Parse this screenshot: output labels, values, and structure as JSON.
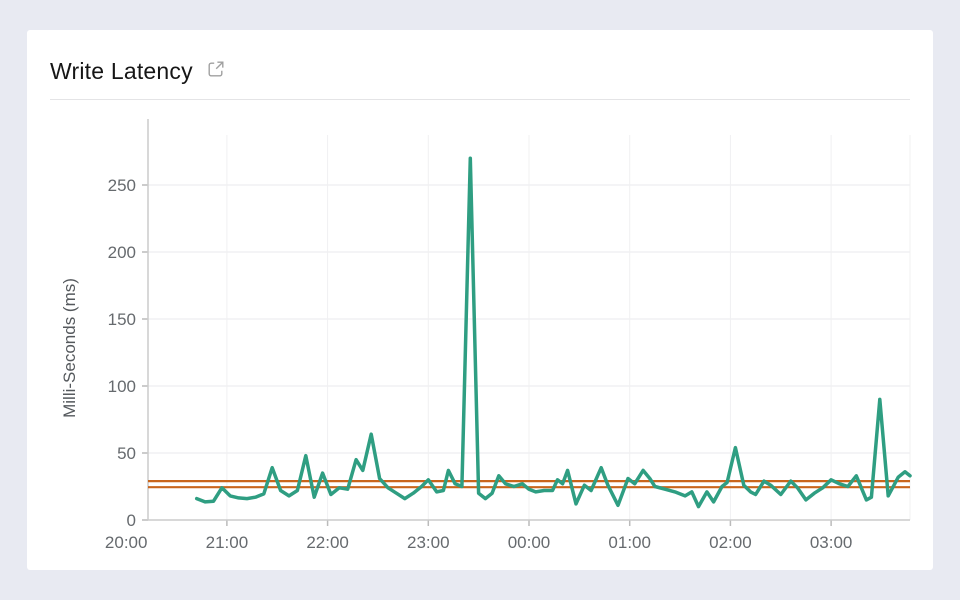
{
  "header": {
    "title": "Write Latency",
    "external_link_icon": "external-link-icon"
  },
  "colors": {
    "page_background": "#e8eaf2",
    "card_background": "#ffffff",
    "series_green": "#2f9e82",
    "threshold_orange": "#c9651c",
    "axis_text": "#666a6e",
    "title_text": "#161616"
  },
  "chart_data": {
    "type": "line",
    "title": "Write Latency",
    "xlabel": "",
    "ylabel": "Milli-Seconds (ms)",
    "y_ticks": [
      0,
      50,
      100,
      150,
      200,
      250
    ],
    "ylim": [
      0,
      272
    ],
    "x_ticks": [
      "20:00",
      "21:00",
      "22:00",
      "23:00",
      "00:00",
      "01:00",
      "02:00",
      "03:00"
    ],
    "x_domain": [
      "20:13",
      "03:47"
    ],
    "grid": true,
    "legend": "none",
    "threshold_lines": [
      {
        "name": "upper-threshold",
        "value": 29,
        "color": "#c9651c"
      },
      {
        "name": "lower-threshold",
        "value": 24.5,
        "color": "#c9651c"
      }
    ],
    "series": [
      {
        "name": "write-latency-ms",
        "color": "#2f9e82",
        "points": [
          [
            "20:42",
            16
          ],
          [
            "20:47",
            13.5
          ],
          [
            "20:52",
            14
          ],
          [
            "20:57",
            24
          ],
          [
            "21:02",
            18
          ],
          [
            "21:07",
            16.5
          ],
          [
            "21:12",
            16
          ],
          [
            "21:17",
            17
          ],
          [
            "21:22",
            19.5
          ],
          [
            "21:27",
            39
          ],
          [
            "21:32",
            22
          ],
          [
            "21:37",
            18
          ],
          [
            "21:42",
            22
          ],
          [
            "21:47",
            48
          ],
          [
            "21:52",
            17
          ],
          [
            "21:57",
            35
          ],
          [
            "22:02",
            19
          ],
          [
            "22:07",
            24
          ],
          [
            "22:12",
            23
          ],
          [
            "22:17",
            45
          ],
          [
            "22:21",
            37
          ],
          [
            "22:26",
            64
          ],
          [
            "22:31",
            31
          ],
          [
            "22:36",
            24
          ],
          [
            "22:41",
            20
          ],
          [
            "22:46",
            16
          ],
          [
            "22:51",
            20
          ],
          [
            "22:56",
            25
          ],
          [
            "23:00",
            30
          ],
          [
            "23:05",
            21
          ],
          [
            "23:09",
            22
          ],
          [
            "23:12",
            37
          ],
          [
            "23:16",
            27
          ],
          [
            "23:20",
            25
          ],
          [
            "23:25",
            270
          ],
          [
            "23:30",
            20
          ],
          [
            "23:34",
            16
          ],
          [
            "23:38",
            20
          ],
          [
            "23:42",
            33
          ],
          [
            "23:46",
            27
          ],
          [
            "23:51",
            25
          ],
          [
            "23:56",
            27
          ],
          [
            "00:00",
            23
          ],
          [
            "00:04",
            21
          ],
          [
            "00:09",
            22
          ],
          [
            "00:14",
            22
          ],
          [
            "00:17",
            30
          ],
          [
            "00:20",
            27
          ],
          [
            "00:23",
            37
          ],
          [
            "00:28",
            12
          ],
          [
            "00:33",
            26
          ],
          [
            "00:37",
            22
          ],
          [
            "00:43",
            39
          ],
          [
            "00:47",
            26
          ],
          [
            "00:53",
            11
          ],
          [
            "00:59",
            31
          ],
          [
            "01:03",
            27
          ],
          [
            "01:08",
            37
          ],
          [
            "01:12",
            31
          ],
          [
            "01:15",
            25
          ],
          [
            "01:21",
            23
          ],
          [
            "01:27",
            21
          ],
          [
            "01:33",
            18
          ],
          [
            "01:37",
            21
          ],
          [
            "01:41",
            10
          ],
          [
            "01:46",
            21
          ],
          [
            "01:50",
            13.5
          ],
          [
            "01:55",
            25
          ],
          [
            "01:58",
            28
          ],
          [
            "02:03",
            54
          ],
          [
            "02:08",
            26
          ],
          [
            "02:12",
            21
          ],
          [
            "02:15",
            19
          ],
          [
            "02:20",
            29
          ],
          [
            "02:24",
            26
          ],
          [
            "02:30",
            19
          ],
          [
            "02:36",
            29
          ],
          [
            "02:40",
            24
          ],
          [
            "02:45",
            15
          ],
          [
            "02:50",
            20
          ],
          [
            "02:55",
            24
          ],
          [
            "03:00",
            30
          ],
          [
            "03:05",
            27
          ],
          [
            "03:10",
            25
          ],
          [
            "03:15",
            33
          ],
          [
            "03:21",
            15
          ],
          [
            "03:24",
            17
          ],
          [
            "03:29",
            90
          ],
          [
            "03:34",
            18
          ],
          [
            "03:40",
            32
          ],
          [
            "03:44",
            36
          ],
          [
            "03:47",
            33
          ]
        ]
      }
    ]
  }
}
